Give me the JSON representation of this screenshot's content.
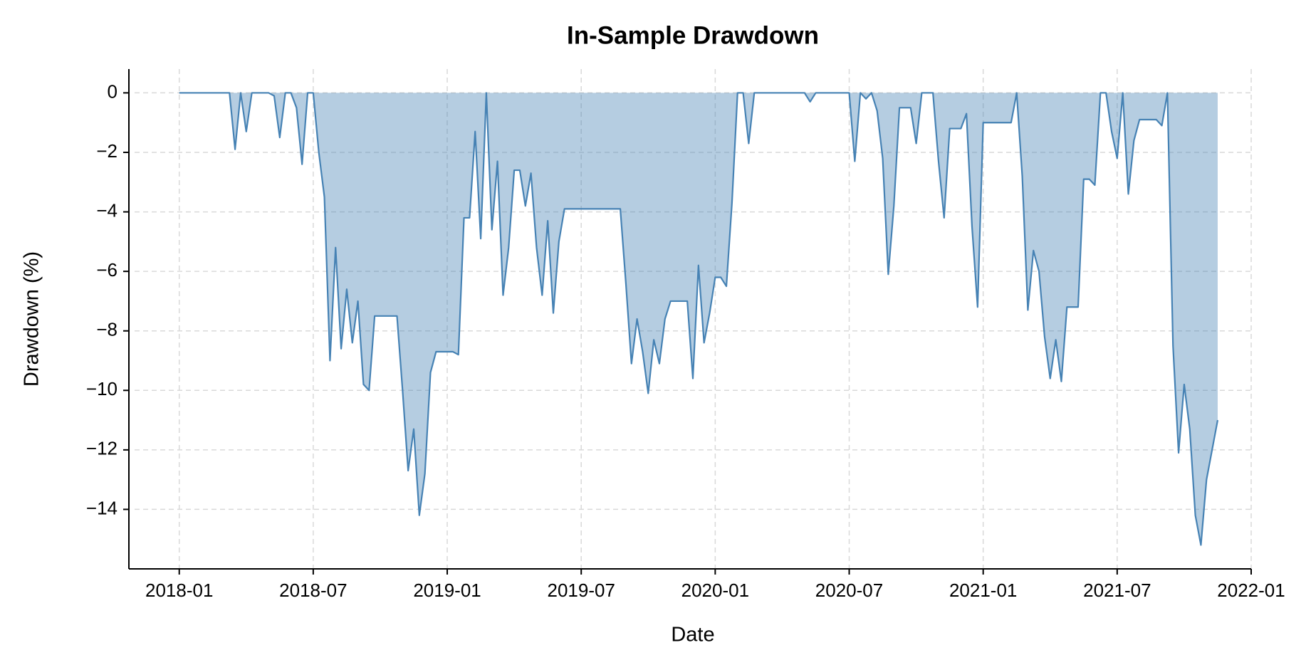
{
  "chart_data": {
    "type": "area",
    "title": "In-Sample Drawdown",
    "x_label": "Date",
    "y_label": "Drawdown (%)",
    "color": "#4682b4",
    "fill_opacity": 0.4,
    "grid": true,
    "x": [
      "2018-01",
      "2018-01",
      "2018-01",
      "2018-01",
      "2018-02",
      "2018-02",
      "2018-02",
      "2018-02",
      "2018-03",
      "2018-03",
      "2018-03",
      "2018-03",
      "2018-04",
      "2018-04",
      "2018-04",
      "2018-04",
      "2018-05",
      "2018-05",
      "2018-05",
      "2018-05",
      "2018-06",
      "2018-06",
      "2018-06",
      "2018-06",
      "2018-07",
      "2018-07",
      "2018-07",
      "2018-07",
      "2018-08",
      "2018-08",
      "2018-08",
      "2018-08",
      "2018-09",
      "2018-09",
      "2018-09",
      "2018-09",
      "2018-10",
      "2018-10",
      "2018-10",
      "2018-10",
      "2018-11",
      "2018-11",
      "2018-11",
      "2018-11",
      "2018-12",
      "2018-12",
      "2018-12",
      "2018-12",
      "2019-01",
      "2019-01",
      "2019-01",
      "2019-01",
      "2019-02",
      "2019-02",
      "2019-02",
      "2019-02",
      "2019-03",
      "2019-03",
      "2019-03",
      "2019-03",
      "2019-04",
      "2019-04",
      "2019-04",
      "2019-04",
      "2019-05",
      "2019-05",
      "2019-05",
      "2019-05",
      "2019-06",
      "2019-06",
      "2019-06",
      "2019-06",
      "2019-07",
      "2019-07",
      "2019-07",
      "2019-07",
      "2019-08",
      "2019-08",
      "2019-08",
      "2019-08",
      "2019-09",
      "2019-09",
      "2019-09",
      "2019-09",
      "2019-10",
      "2019-10",
      "2019-10",
      "2019-10",
      "2019-11",
      "2019-11",
      "2019-11",
      "2019-11",
      "2019-12",
      "2019-12",
      "2019-12",
      "2019-12",
      "2020-01",
      "2020-01",
      "2020-01",
      "2020-01",
      "2020-02",
      "2020-02",
      "2020-02",
      "2020-02",
      "2020-03",
      "2020-03",
      "2020-03",
      "2020-03",
      "2020-04",
      "2020-04",
      "2020-04",
      "2020-04",
      "2020-05",
      "2020-05",
      "2020-05",
      "2020-05",
      "2020-06",
      "2020-06",
      "2020-06",
      "2020-06",
      "2020-07",
      "2020-07",
      "2020-07",
      "2020-07",
      "2020-08",
      "2020-08",
      "2020-08",
      "2020-08",
      "2020-09",
      "2020-09",
      "2020-09",
      "2020-09",
      "2020-10",
      "2020-10",
      "2020-10",
      "2020-10",
      "2020-11",
      "2020-11",
      "2020-11",
      "2020-11",
      "2020-12",
      "2020-12",
      "2020-12",
      "2020-12",
      "2021-01",
      "2021-01",
      "2021-01",
      "2021-01",
      "2021-02",
      "2021-02",
      "2021-02",
      "2021-02",
      "2021-03",
      "2021-03",
      "2021-03",
      "2021-03",
      "2021-04",
      "2021-04",
      "2021-04",
      "2021-04",
      "2021-05",
      "2021-05",
      "2021-05",
      "2021-05",
      "2021-06",
      "2021-06",
      "2021-06",
      "2021-06",
      "2021-07",
      "2021-07",
      "2021-07",
      "2021-07",
      "2021-08",
      "2021-08",
      "2021-08",
      "2021-08",
      "2021-09",
      "2021-09",
      "2021-09",
      "2021-09",
      "2021-10",
      "2021-10",
      "2021-10",
      "2021-10",
      "2021-11",
      "2021-11"
    ],
    "values": [
      0,
      0,
      0,
      0,
      0,
      0,
      0,
      0,
      0,
      0,
      -1.9,
      0,
      -1.3,
      0,
      0,
      0,
      0,
      -0.1,
      -1.5,
      0,
      0,
      -0.5,
      -2.4,
      0,
      0,
      -2,
      -3.5,
      -9,
      -5.2,
      -8.6,
      -6.6,
      -8.4,
      -7,
      -9.8,
      -10,
      -7.5,
      -7.5,
      -7.5,
      -7.5,
      -7.5,
      -10,
      -12.7,
      -11.3,
      -14.2,
      -12.8,
      -9.4,
      -8.7,
      -8.7,
      -8.7,
      -8.7,
      -8.8,
      -4.2,
      -4.2,
      -1.3,
      -4.9,
      0,
      -4.6,
      -2.3,
      -6.8,
      -5.2,
      -2.6,
      -2.6,
      -3.8,
      -2.7,
      -5.2,
      -6.8,
      -4.3,
      -7.4,
      -5,
      -3.9,
      -3.9,
      -3.9,
      -3.9,
      -3.9,
      -3.9,
      -3.9,
      -3.9,
      -3.9,
      -3.9,
      -3.9,
      -6.4,
      -9.1,
      -7.6,
      -8.7,
      -10.1,
      -8.3,
      -9.1,
      -7.6,
      -7,
      -7,
      -7,
      -7,
      -9.6,
      -5.8,
      -8.4,
      -7.4,
      -6.2,
      -6.2,
      -6.5,
      -3.7,
      0,
      0,
      -1.7,
      0,
      0,
      0,
      0,
      0,
      0,
      0,
      0,
      0,
      0,
      -0.3,
      0,
      0,
      0,
      0,
      0,
      0,
      0,
      -2.3,
      0,
      -0.2,
      0,
      -0.6,
      -2.2,
      -6.1,
      -3.8,
      -0.5,
      -0.5,
      -0.5,
      -1.7,
      0,
      0,
      0,
      -2.3,
      -4.2,
      -1.2,
      -1.2,
      -1.2,
      -0.7,
      -4.5,
      -7.2,
      -1,
      -1,
      -1,
      -1,
      -1,
      -1,
      0,
      -2.8,
      -7.3,
      -5.3,
      -6,
      -8.2,
      -9.6,
      -8.3,
      -9.7,
      -7.2,
      -7.2,
      -7.2,
      -2.9,
      -2.9,
      -3.1,
      0,
      0,
      -1.3,
      -2.2,
      0,
      -3.4,
      -1.6,
      -0.9,
      -0.9,
      -0.9,
      -0.9,
      -1.1,
      0,
      -8.5,
      -12.1,
      -9.8,
      -11.3,
      -14.2,
      -15.2,
      -13,
      -11
    ],
    "xlim": [
      "2017-11",
      "2022-01"
    ],
    "xticks": [
      "2018-01",
      "2018-07",
      "2019-01",
      "2019-07",
      "2020-01",
      "2020-07",
      "2021-01",
      "2021-07",
      "2022-01"
    ],
    "ylim": [
      -16,
      0.8
    ],
    "yticks": [
      0,
      {
        "value": -2,
        "label": "−2"
      },
      {
        "value": -4,
        "label": "−4"
      },
      {
        "value": -6,
        "label": "−6"
      },
      {
        "value": -8,
        "label": "−8"
      },
      {
        "value": -10,
        "label": "−10"
      },
      {
        "value": -12,
        "label": "−12"
      },
      {
        "value": -14,
        "label": "−14"
      }
    ]
  }
}
